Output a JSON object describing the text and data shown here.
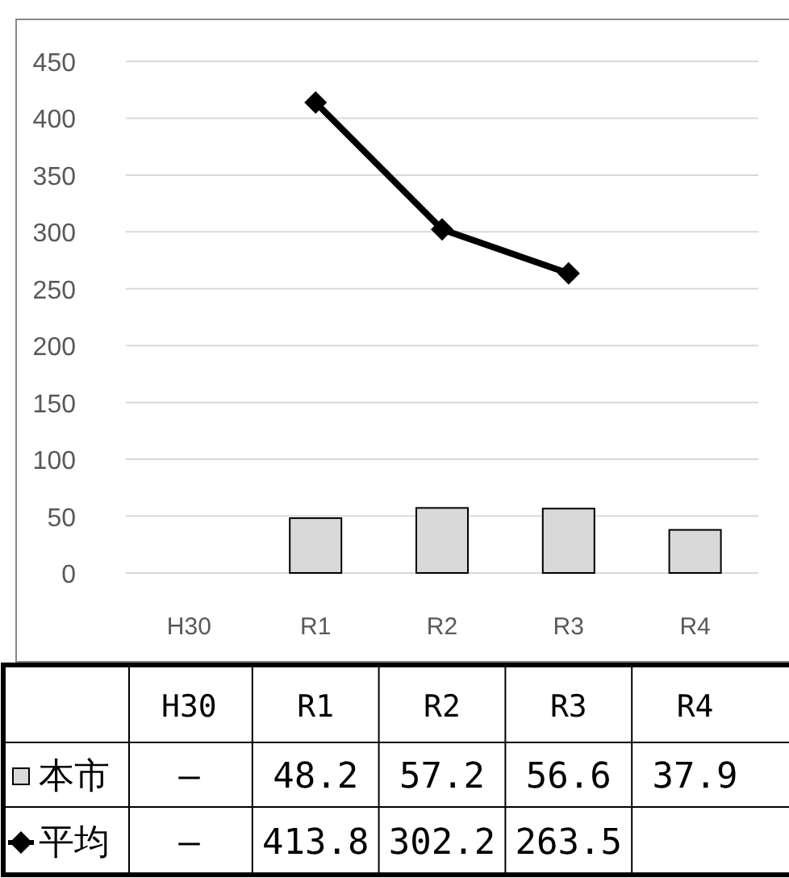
{
  "chart_data": {
    "type": "bar",
    "categories": [
      "H30",
      "R1",
      "R2",
      "R3",
      "R4"
    ],
    "series": [
      {
        "name": "本市",
        "color": "#d9d9d9",
        "values": [
          null,
          48.2,
          57.2,
          56.6,
          37.9
        ],
        "value_labels": [
          "—",
          "48.2",
          "57.2",
          "56.6",
          "37.9"
        ]
      },
      {
        "name": "平均",
        "type": "line",
        "color": "#000000",
        "marker": "diamond",
        "values": [
          null,
          413.8,
          302.2,
          263.5,
          null
        ],
        "value_labels": [
          "—",
          "413.8",
          "302.2",
          "263.5",
          null
        ]
      }
    ],
    "ylim": [
      0,
      450
    ],
    "yticks": [
      0,
      50,
      100,
      150,
      200,
      250,
      300,
      350,
      400,
      450
    ],
    "grid": "y",
    "legend": "bottom"
  }
}
